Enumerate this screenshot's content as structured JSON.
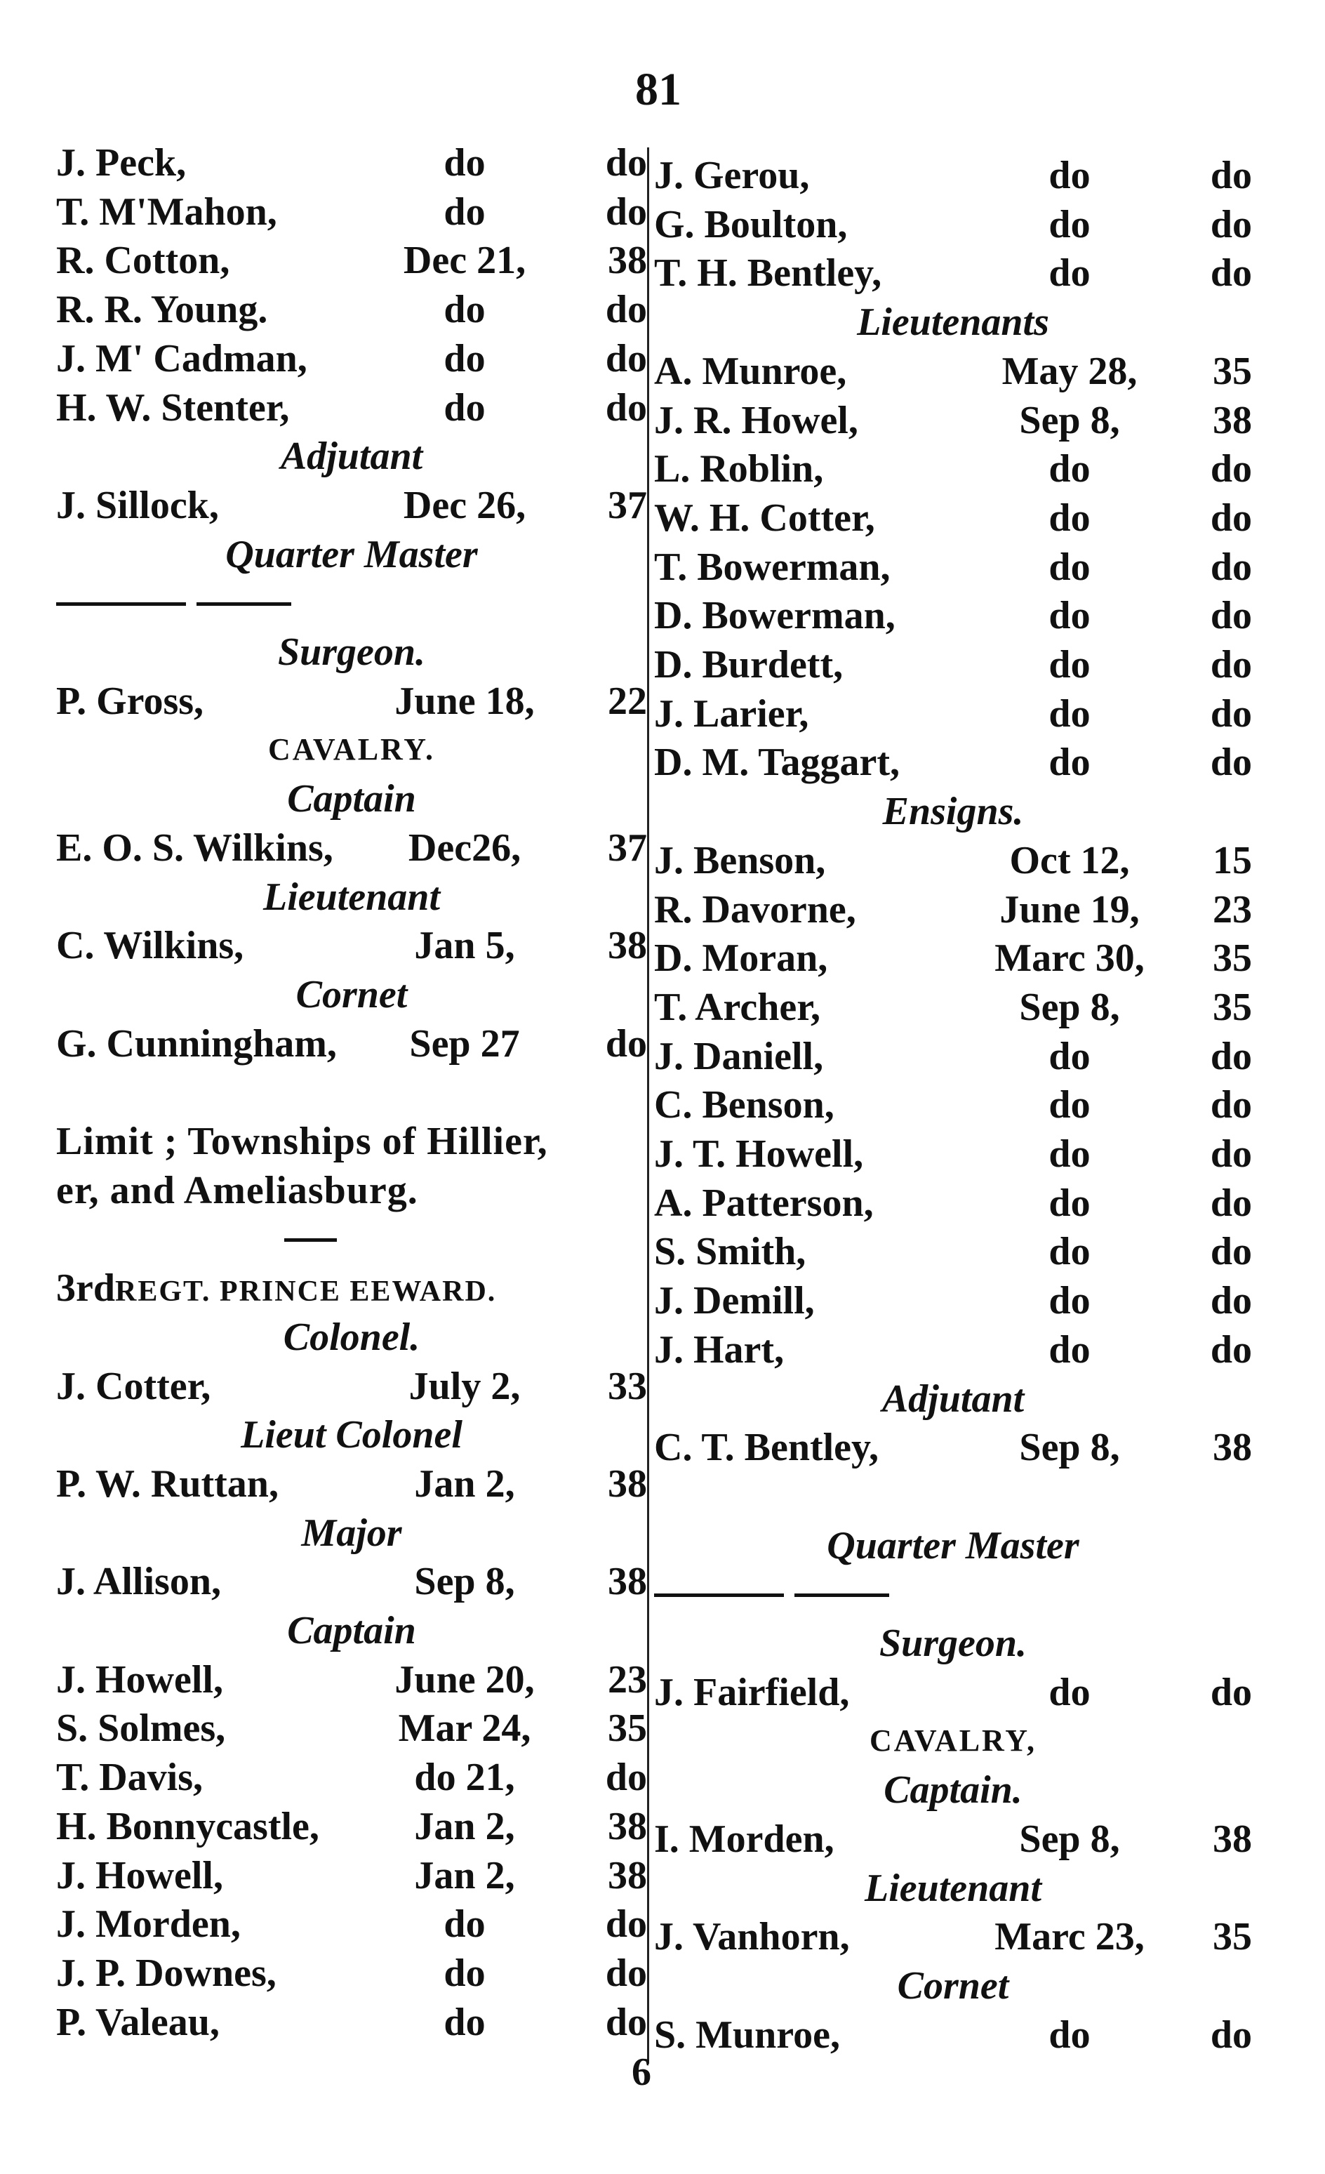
{
  "page_number": "81",
  "footer_signature": "6",
  "left_column": [
    {
      "type": "entry",
      "name": "J. Peck,",
      "d1": "do",
      "d2": "do"
    },
    {
      "type": "entry",
      "name": "T. M'Mahon,",
      "d1": "do",
      "d2": "do"
    },
    {
      "type": "entry",
      "name": "R. Cotton,",
      "d1": "Dec 21,",
      "d2": "38"
    },
    {
      "type": "entry",
      "name": "R. R. Young.",
      "d1": "do",
      "d2": "do"
    },
    {
      "type": "entry",
      "name": "J. M' Cadman,",
      "d1": "do",
      "d2": "do"
    },
    {
      "type": "entry",
      "name": "H. W. Stenter,",
      "d1": "do",
      "d2": "do"
    },
    {
      "type": "head",
      "text": "Adjutant"
    },
    {
      "type": "entry",
      "name": "J. Sillock,",
      "d1": "Dec 26,",
      "d2": "37"
    },
    {
      "type": "head",
      "text": "Quarter Master"
    },
    {
      "type": "rule"
    },
    {
      "type": "head",
      "text": "Surgeon."
    },
    {
      "type": "entry",
      "name": "P. Gross,",
      "d1": "June 18,",
      "d2": "22"
    },
    {
      "type": "caps",
      "text": "CAVALRY."
    },
    {
      "type": "head",
      "text": "Captain"
    },
    {
      "type": "entry",
      "name": "E. O. S. Wilkins,",
      "d1": "Dec26,",
      "d2": "37"
    },
    {
      "type": "head",
      "text": "Lieutenant"
    },
    {
      "type": "entry",
      "name": "C. Wilkins,",
      "d1": "Jan 5,",
      "d2": "38"
    },
    {
      "type": "head",
      "text": "Cornet"
    },
    {
      "type": "entry",
      "name": "G. Cunningham,",
      "d1": "Sep 27",
      "d2": "do"
    },
    {
      "type": "blank"
    },
    {
      "type": "text",
      "text": "Limit ; Townships of Hillier,"
    },
    {
      "type": "text",
      "text": "er, and Ameliasburg."
    },
    {
      "type": "rule",
      "short": true
    },
    {
      "type": "regt",
      "prefix": "3rd",
      "text": "REGT. PRINCE EEWARD."
    },
    {
      "type": "head",
      "text": "Colonel."
    },
    {
      "type": "entry",
      "name": "J. Cotter,",
      "d1": "July 2,",
      "d2": "33"
    },
    {
      "type": "head",
      "text": "Lieut Colonel"
    },
    {
      "type": "entry",
      "name": "P. W. Ruttan,",
      "d1": "Jan 2,",
      "d2": "38"
    },
    {
      "type": "head",
      "text": "Major"
    },
    {
      "type": "entry",
      "name": "J. Allison,",
      "d1": "Sep 8,",
      "d2": "38"
    },
    {
      "type": "head",
      "text": "Captain"
    },
    {
      "type": "entry",
      "name": "J. Howell,",
      "d1": "June 20,",
      "d2": "23"
    },
    {
      "type": "entry",
      "name": "S. Solmes,",
      "d1": "Mar 24,",
      "d2": "35"
    },
    {
      "type": "entry",
      "name": "T. Davis,",
      "d1": "do 21,",
      "d2": "do"
    },
    {
      "type": "entry",
      "name": "H. Bonnycastle,",
      "d1": "Jan 2,",
      "d2": "38"
    },
    {
      "type": "entry",
      "name": "J. Howell,",
      "d1": "Jan 2,",
      "d2": "38"
    },
    {
      "type": "entry",
      "name": "J. Morden,",
      "d1": "do",
      "d2": "do"
    },
    {
      "type": "entry",
      "name": "J. P. Downes,",
      "d1": "do",
      "d2": "do"
    },
    {
      "type": "entry",
      "name": "P. Valeau,",
      "d1": "do",
      "d2": "do"
    }
  ],
  "right_column": [
    {
      "type": "entry",
      "name": "J. Gerou,",
      "d1": "do",
      "d2": "do"
    },
    {
      "type": "entry",
      "name": "G. Boulton,",
      "d1": "do",
      "d2": "do"
    },
    {
      "type": "entry",
      "name": "T. H. Bentley,",
      "d1": "do",
      "d2": "do"
    },
    {
      "type": "head",
      "text": "Lieutenants"
    },
    {
      "type": "entry",
      "name": "A. Munroe,",
      "d1": "May 28,",
      "d2": "35"
    },
    {
      "type": "entry",
      "name": "J. R. Howel,",
      "d1": "Sep 8,",
      "d2": "38"
    },
    {
      "type": "entry",
      "name": "L. Roblin,",
      "d1": "do",
      "d2": "do"
    },
    {
      "type": "entry",
      "name": "W. H. Cotter,",
      "d1": "do",
      "d2": "do"
    },
    {
      "type": "entry",
      "name": "T. Bowerman,",
      "d1": "do",
      "d2": "do"
    },
    {
      "type": "entry",
      "name": "D. Bowerman,",
      "d1": "do",
      "d2": "do"
    },
    {
      "type": "entry",
      "name": "D. Burdett,",
      "d1": "do",
      "d2": "do"
    },
    {
      "type": "entry",
      "name": "J. Larier,",
      "d1": "do",
      "d2": "do"
    },
    {
      "type": "entry",
      "name": "D. M. Taggart,",
      "d1": "do",
      "d2": "do"
    },
    {
      "type": "head",
      "text": "Ensigns."
    },
    {
      "type": "entry",
      "name": "J. Benson,",
      "d1": "Oct 12,",
      "d2": "15"
    },
    {
      "type": "entry",
      "name": "R. Davorne,",
      "d1": "June 19,",
      "d2": "23"
    },
    {
      "type": "entry",
      "name": "D. Moran,",
      "d1": "Marc 30,",
      "d2": "35"
    },
    {
      "type": "entry",
      "name": "T. Archer,",
      "d1": "Sep 8,",
      "d2": "35"
    },
    {
      "type": "entry",
      "name": "J. Daniell,",
      "d1": "do",
      "d2": "do"
    },
    {
      "type": "entry",
      "name": "C. Benson,",
      "d1": "do",
      "d2": "do"
    },
    {
      "type": "entry",
      "name": "J. T. Howell,",
      "d1": "do",
      "d2": "do"
    },
    {
      "type": "entry",
      "name": "A. Patterson,",
      "d1": "do",
      "d2": "do"
    },
    {
      "type": "entry",
      "name": "S. Smith,",
      "d1": "do",
      "d2": "do"
    },
    {
      "type": "entry",
      "name": "J. Demill,",
      "d1": "do",
      "d2": "do"
    },
    {
      "type": "entry",
      "name": "J. Hart,",
      "d1": "do",
      "d2": "do"
    },
    {
      "type": "head",
      "text": "Adjutant"
    },
    {
      "type": "entry",
      "name": "C. T. Bentley,",
      "d1": "Sep 8,",
      "d2": "38"
    },
    {
      "type": "blank"
    },
    {
      "type": "head",
      "text": "Quarter Master"
    },
    {
      "type": "rule"
    },
    {
      "type": "head",
      "text": "Surgeon."
    },
    {
      "type": "entry",
      "name": "J. Fairfield,",
      "d1": "do",
      "d2": "do"
    },
    {
      "type": "caps",
      "text": "CAVALRY,"
    },
    {
      "type": "head",
      "text": "Captain."
    },
    {
      "type": "entry",
      "name": "I. Morden,",
      "d1": "Sep 8,",
      "d2": "38"
    },
    {
      "type": "head",
      "text": "Lieutenant"
    },
    {
      "type": "entry",
      "name": "J. Vanhorn,",
      "d1": "Marc 23,",
      "d2": "35"
    },
    {
      "type": "head",
      "text": "Cornet"
    },
    {
      "type": "entry",
      "name": "S. Munroe,",
      "d1": "do",
      "d2": "do"
    }
  ]
}
